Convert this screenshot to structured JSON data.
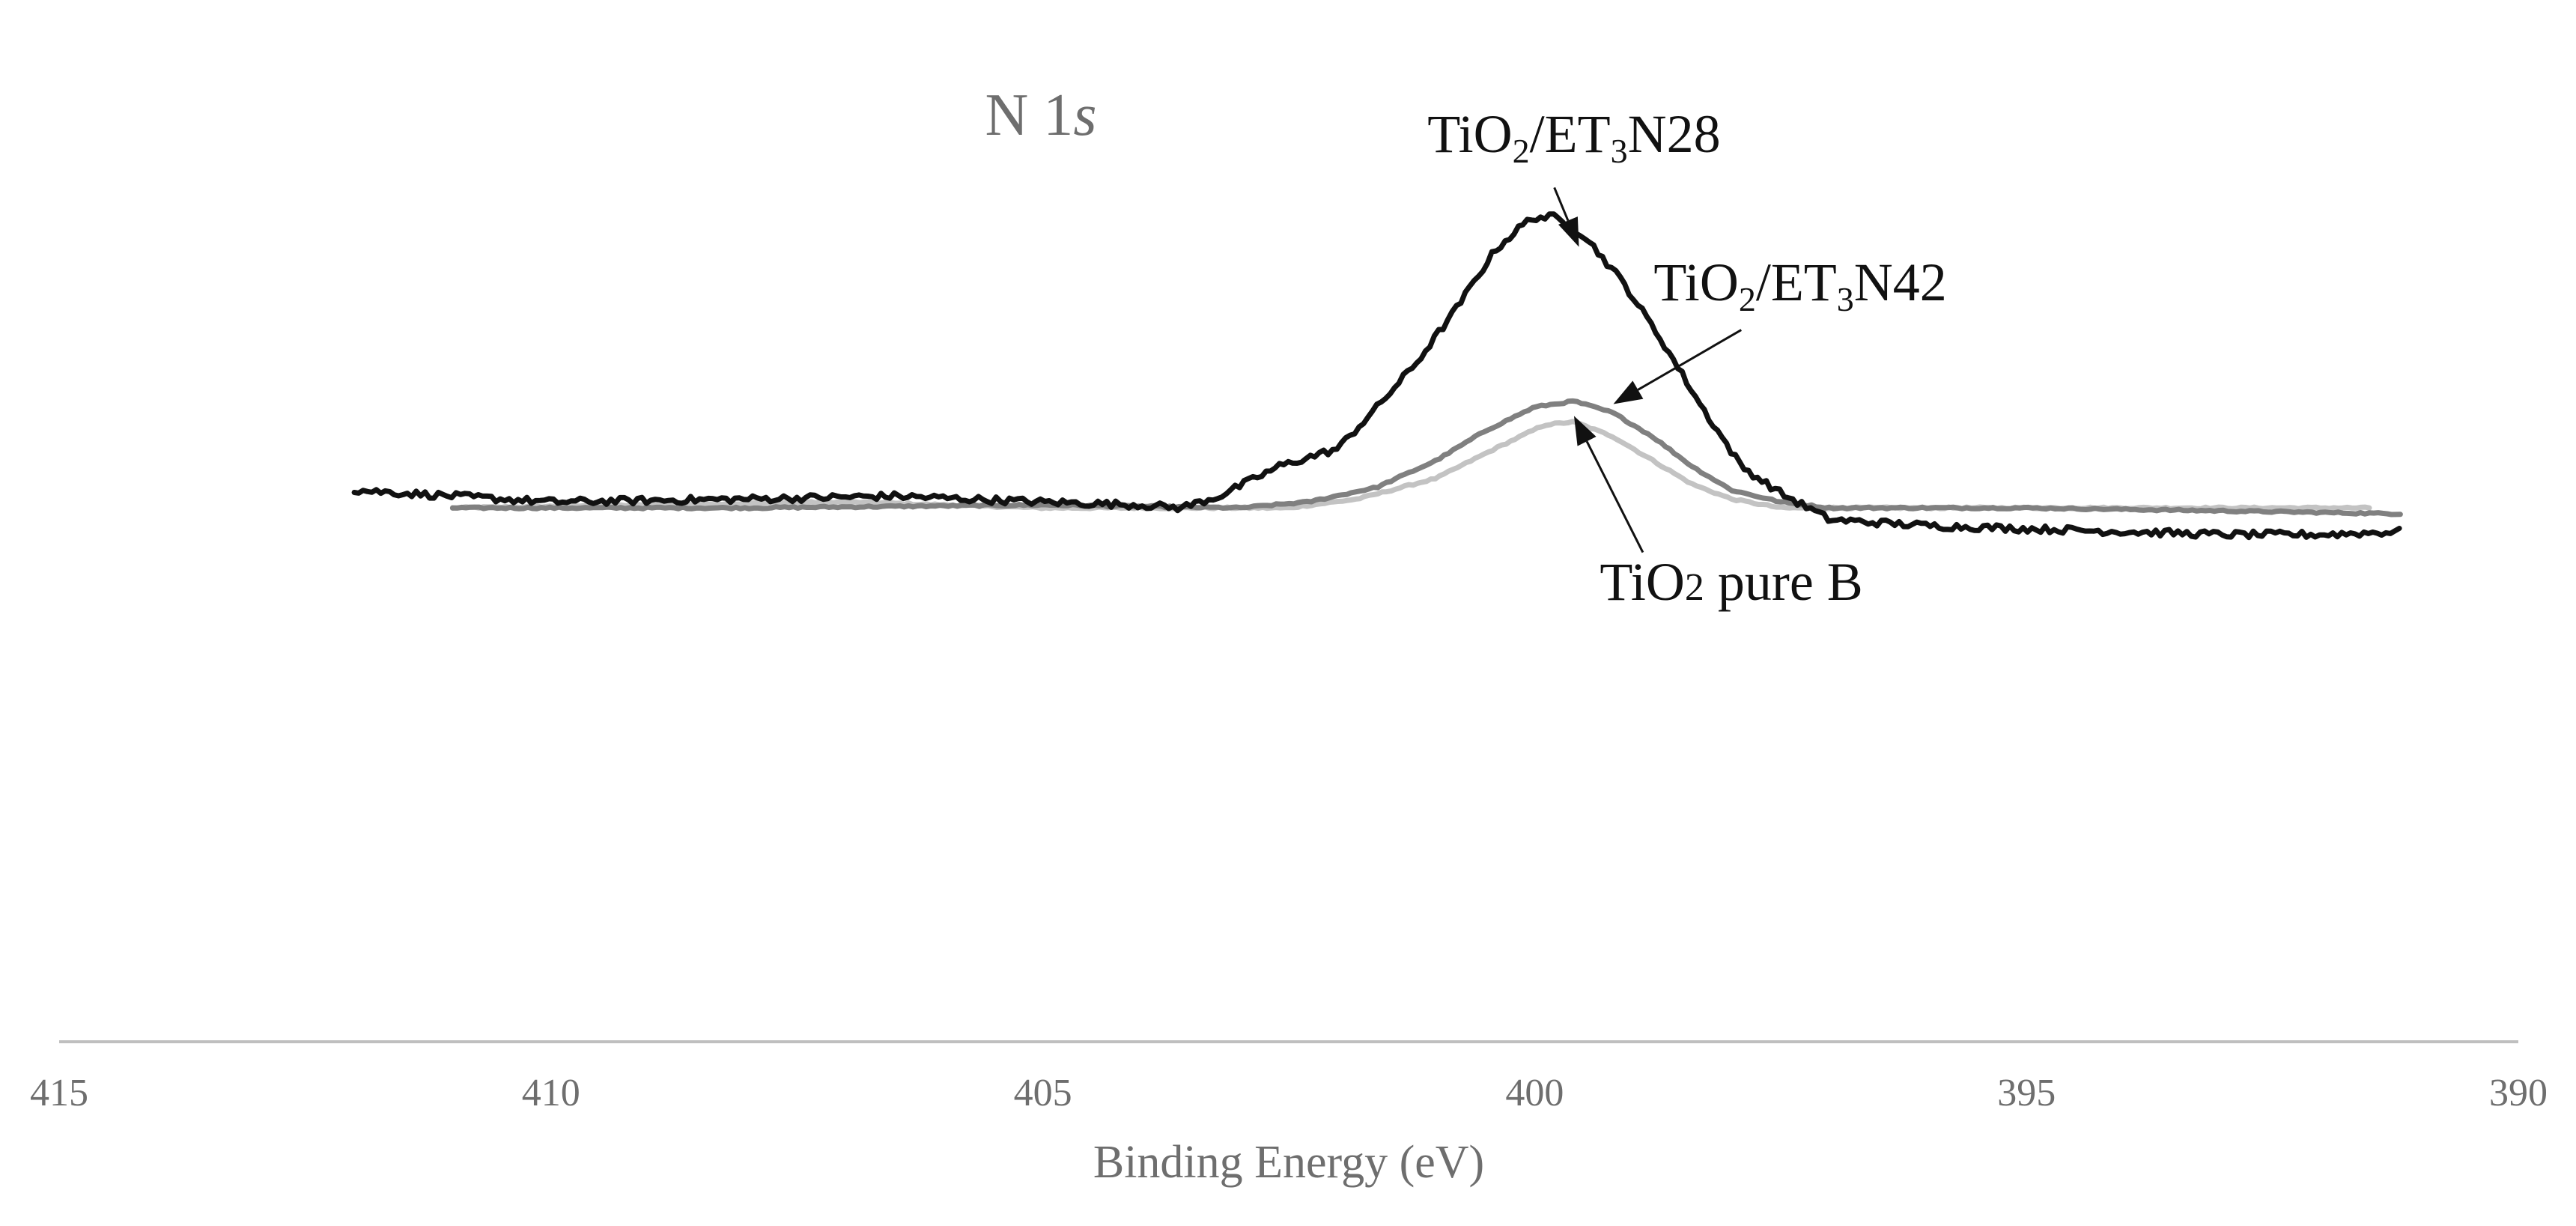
{
  "chart_data": {
    "type": "line",
    "title": "N 1s",
    "title_parts": {
      "main": "N 1",
      "italic": "s"
    },
    "xlabel": "Binding Energy (eV)",
    "ylabel": "",
    "xlim": [
      415,
      390
    ],
    "x_reversed": true,
    "ylim": [
      -1.8,
      1.22
    ],
    "grid": false,
    "x_ticks": [
      415,
      410,
      405,
      400,
      395,
      390
    ],
    "x_tick_labels": [
      "415",
      "410",
      "405",
      "400",
      "395",
      "390"
    ],
    "series": [
      {
        "name": "TiO2/ET3N28",
        "color": "#111111",
        "noise": 0.012,
        "points": [
          [
            412,
            0.06
          ],
          [
            410,
            0.02
          ],
          [
            408,
            0.03
          ],
          [
            406.5,
            0.04
          ],
          [
            405,
            0.02
          ],
          [
            404,
            0.01
          ],
          [
            403.6,
            0.0
          ],
          [
            403.2,
            0.04
          ],
          [
            402.6,
            0.14
          ],
          [
            402,
            0.2
          ],
          [
            401.6,
            0.34
          ],
          [
            401.2,
            0.49
          ],
          [
            400.8,
            0.67
          ],
          [
            400.4,
            0.87
          ],
          [
            400.1,
            0.96
          ],
          [
            400.0,
            0.98
          ],
          [
            399.8,
            0.98
          ],
          [
            399.5,
            0.92
          ],
          [
            399.1,
            0.76
          ],
          [
            398.7,
            0.56
          ],
          [
            398.3,
            0.34
          ],
          [
            397.9,
            0.14
          ],
          [
            397.5,
            0.05
          ],
          [
            397.0,
            -0.04
          ],
          [
            396,
            -0.06
          ],
          [
            395,
            -0.07
          ],
          [
            394,
            -0.08
          ],
          [
            393,
            -0.09
          ],
          [
            392,
            -0.09
          ],
          [
            391.2,
            -0.08
          ]
        ]
      },
      {
        "name": "TiO2/ET3N42",
        "color": "#808080",
        "noise": 0.003,
        "points": [
          [
            411,
            0.0
          ],
          [
            408,
            0.0
          ],
          [
            405,
            0.01
          ],
          [
            403,
            0.0
          ],
          [
            402.3,
            0.02
          ],
          [
            401.6,
            0.07
          ],
          [
            401.0,
            0.16
          ],
          [
            400.5,
            0.26
          ],
          [
            400.0,
            0.34
          ],
          [
            399.6,
            0.36
          ],
          [
            399.2,
            0.32
          ],
          [
            398.8,
            0.24
          ],
          [
            398.4,
            0.14
          ],
          [
            398.0,
            0.06
          ],
          [
            397.5,
            0.02
          ],
          [
            397,
            0.0
          ],
          [
            395,
            0.0
          ],
          [
            393,
            -0.01
          ],
          [
            391.2,
            -0.02
          ]
        ]
      },
      {
        "name": "TiO2 pure B",
        "color": "#c3c3c3",
        "noise": 0.003,
        "points": [
          [
            411,
            0.0
          ],
          [
            409,
            0.01
          ],
          [
            407,
            0.02
          ],
          [
            405,
            0.0
          ],
          [
            404,
            0.0
          ],
          [
            402.5,
            0.0
          ],
          [
            401.8,
            0.03
          ],
          [
            401.0,
            0.1
          ],
          [
            400.4,
            0.2
          ],
          [
            399.9,
            0.28
          ],
          [
            399.6,
            0.29
          ],
          [
            399.2,
            0.24
          ],
          [
            398.8,
            0.16
          ],
          [
            398.4,
            0.08
          ],
          [
            398.0,
            0.03
          ],
          [
            397.5,
            0.0
          ],
          [
            396,
            0.0
          ],
          [
            394,
            0.0
          ],
          [
            391.5,
            0.0
          ]
        ]
      }
    ],
    "annotations": [
      {
        "series": "TiO2/ET3N28",
        "parts": [
          {
            "t": "TiO"
          },
          {
            "t": "2",
            "sub": true
          },
          {
            "t": "/ET"
          },
          {
            "t": "3",
            "sub": true
          },
          {
            "t": "N28"
          }
        ],
        "label_at": [
          399.6,
          1.2
        ],
        "arrow_from": [
          399.8,
          1.08
        ],
        "arrow_to": [
          399.55,
          0.88
        ]
      },
      {
        "series": "TiO2/ET3N42",
        "parts": [
          {
            "t": "TiO"
          },
          {
            "t": "2",
            "sub": true
          },
          {
            "t": "/ET"
          },
          {
            "t": "3",
            "sub": true
          },
          {
            "t": "N42"
          }
        ],
        "label_at": [
          397.3,
          0.7
        ],
        "arrow_from": [
          397.9,
          0.6
        ],
        "arrow_to": [
          399.2,
          0.35
        ]
      },
      {
        "series": "TiO2 pure B",
        "parts": [
          {
            "t": "TiO"
          },
          {
            "t": "2",
            "small": true
          },
          {
            "t": " pure B"
          }
        ],
        "label_at": [
          398.0,
          -0.31
        ],
        "arrow_from": [
          398.9,
          -0.15
        ],
        "arrow_to": [
          399.6,
          0.31
        ]
      }
    ]
  }
}
